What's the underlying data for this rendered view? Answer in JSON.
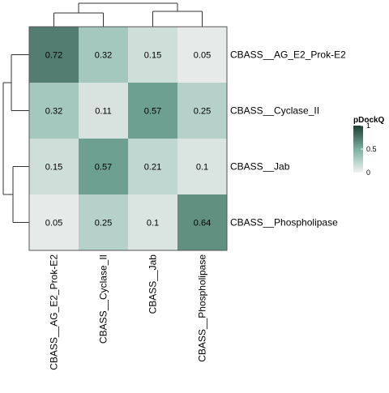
{
  "chart_data": {
    "type": "heatmap",
    "rows": [
      "CBASS__AG_E2_Prok-E2",
      "CBASS__Cyclase_II",
      "CBASS__Jab",
      "CBASS__Phospholipase"
    ],
    "columns": [
      "CBASS__AG_E2_Prok-E2",
      "CBASS__Cyclase_II",
      "CBASS__Jab",
      "CBASS__Phospholipase"
    ],
    "values": [
      [
        0.72,
        0.32,
        0.15,
        0.05
      ],
      [
        0.32,
        0.11,
        0.57,
        0.25
      ],
      [
        0.15,
        0.57,
        0.21,
        0.1
      ],
      [
        0.05,
        0.25,
        0.1,
        0.64
      ]
    ],
    "value_labels": [
      [
        "0.72",
        "0.32",
        "0.15",
        "0.05"
      ],
      [
        "0.32",
        "0.11",
        "0.57",
        "0.25"
      ],
      [
        "0.15",
        "0.57",
        "0.21",
        "0.1"
      ],
      [
        "0.05",
        "0.25",
        "0.1",
        "0.64"
      ]
    ],
    "legend": {
      "title": "pDockQ",
      "ticks": [
        "1",
        "0.5",
        "0"
      ],
      "range": [
        0,
        1
      ],
      "colors": {
        "low": "#f2f2f2",
        "high": "#1f3d33"
      },
      "placement": "right"
    },
    "dendrograms": {
      "rows": "left",
      "columns": "top"
    },
    "border_color": "#555555",
    "text_color": "#000000"
  }
}
